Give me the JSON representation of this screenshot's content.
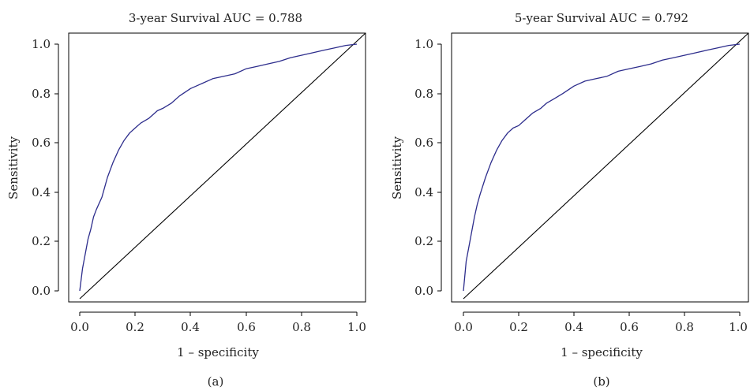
{
  "colors": {
    "roc_line": "#2d2d8c",
    "reference_line": "#000000",
    "frame": "#000000",
    "text": "#222222"
  },
  "chart_data": [
    {
      "type": "line",
      "panel_label": "(a)",
      "title": "3-year Survival AUC = 0.788",
      "xlabel": "1 – specificity",
      "ylabel": "Sensitivity",
      "xlim": [
        0.0,
        1.0
      ],
      "ylim": [
        0.0,
        1.0
      ],
      "xticks": [
        "0.0",
        "0.2",
        "0.4",
        "0.6",
        "0.8",
        "1.0"
      ],
      "yticks": [
        "0.0",
        "0.2",
        "0.4",
        "0.6",
        "0.8",
        "1.0"
      ],
      "grid": false,
      "series": [
        {
          "x": [
            0.0,
            0.01,
            0.02,
            0.03,
            0.04,
            0.05,
            0.06,
            0.08,
            0.1,
            0.12,
            0.14,
            0.16,
            0.18,
            0.2,
            0.22,
            0.25,
            0.28,
            0.3,
            0.33,
            0.36,
            0.4,
            0.44,
            0.48,
            0.52,
            0.56,
            0.6,
            0.64,
            0.68,
            0.72,
            0.76,
            0.8,
            0.84,
            0.88,
            0.92,
            0.96,
            1.0
          ],
          "y": [
            0.0,
            0.09,
            0.15,
            0.21,
            0.25,
            0.3,
            0.33,
            0.38,
            0.46,
            0.52,
            0.57,
            0.61,
            0.64,
            0.66,
            0.68,
            0.7,
            0.73,
            0.74,
            0.76,
            0.79,
            0.82,
            0.84,
            0.86,
            0.87,
            0.88,
            0.9,
            0.91,
            0.92,
            0.93,
            0.945,
            0.955,
            0.965,
            0.975,
            0.985,
            0.995,
            1.0
          ]
        },
        {
          "x": [
            0.0,
            1.0
          ],
          "y": [
            0.0,
            1.0
          ]
        }
      ]
    },
    {
      "type": "line",
      "panel_label": "(b)",
      "title": "5-year Survival AUC = 0.792",
      "xlabel": "1 – specificity",
      "ylabel": "Sensitivity",
      "xlim": [
        0.0,
        1.0
      ],
      "ylim": [
        0.0,
        1.0
      ],
      "xticks": [
        "0.0",
        "0.2",
        "0.4",
        "0.6",
        "0.8",
        "1.0"
      ],
      "yticks": [
        "0.0",
        "0.2",
        "0.4",
        "0.6",
        "0.8",
        "1.0"
      ],
      "grid": false,
      "series": [
        {
          "x": [
            0.0,
            0.01,
            0.02,
            0.03,
            0.04,
            0.05,
            0.06,
            0.08,
            0.1,
            0.12,
            0.14,
            0.16,
            0.18,
            0.2,
            0.22,
            0.25,
            0.28,
            0.3,
            0.33,
            0.36,
            0.4,
            0.44,
            0.48,
            0.52,
            0.56,
            0.6,
            0.64,
            0.68,
            0.72,
            0.76,
            0.8,
            0.84,
            0.88,
            0.92,
            0.96,
            1.0
          ],
          "y": [
            0.0,
            0.12,
            0.18,
            0.24,
            0.3,
            0.35,
            0.39,
            0.46,
            0.52,
            0.57,
            0.61,
            0.64,
            0.66,
            0.67,
            0.69,
            0.72,
            0.74,
            0.76,
            0.78,
            0.8,
            0.83,
            0.85,
            0.86,
            0.87,
            0.89,
            0.9,
            0.91,
            0.92,
            0.935,
            0.945,
            0.955,
            0.965,
            0.975,
            0.985,
            0.995,
            1.0
          ]
        },
        {
          "x": [
            0.0,
            1.0
          ],
          "y": [
            0.0,
            1.0
          ]
        }
      ]
    }
  ]
}
